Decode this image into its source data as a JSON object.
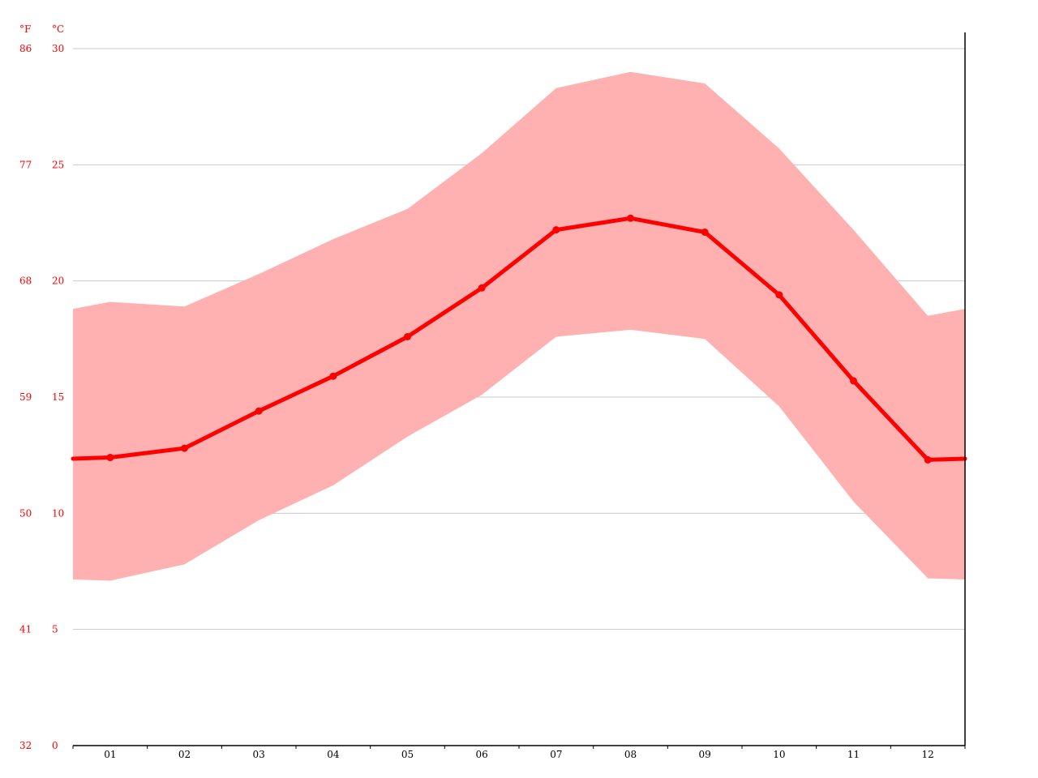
{
  "chart_data": {
    "type": "line",
    "categories": [
      "01",
      "02",
      "03",
      "04",
      "05",
      "06",
      "07",
      "08",
      "09",
      "10",
      "11",
      "12"
    ],
    "series": [
      {
        "role": "mean",
        "values": [
          12.4,
          12.8,
          14.4,
          15.9,
          17.6,
          19.7,
          22.2,
          22.7,
          22.1,
          19.4,
          15.7,
          12.3
        ]
      },
      {
        "role": "max",
        "values": [
          19.1,
          18.9,
          20.3,
          21.8,
          23.1,
          25.5,
          28.3,
          29.0,
          28.5,
          25.7,
          22.2,
          18.5
        ]
      },
      {
        "role": "min",
        "values": [
          7.1,
          7.8,
          9.7,
          11.2,
          13.3,
          15.1,
          17.6,
          17.9,
          17.5,
          14.6,
          10.5,
          7.2
        ]
      }
    ],
    "y_celsius_ticks": [
      "0",
      "5",
      "10",
      "15",
      "20",
      "25",
      "30"
    ],
    "y_fahrenheit_ticks": [
      "32",
      "41",
      "50",
      "59",
      "68",
      "77",
      "86"
    ],
    "y_celsius_unit": "°C",
    "y_fahrenheit_unit": "°F",
    "ylim": [
      0,
      30
    ],
    "grid": true,
    "colors": {
      "line": "#ff0000",
      "band": "#ffb0b0",
      "grid": "#c8c8c8",
      "axis_text": "#ff0000"
    }
  }
}
